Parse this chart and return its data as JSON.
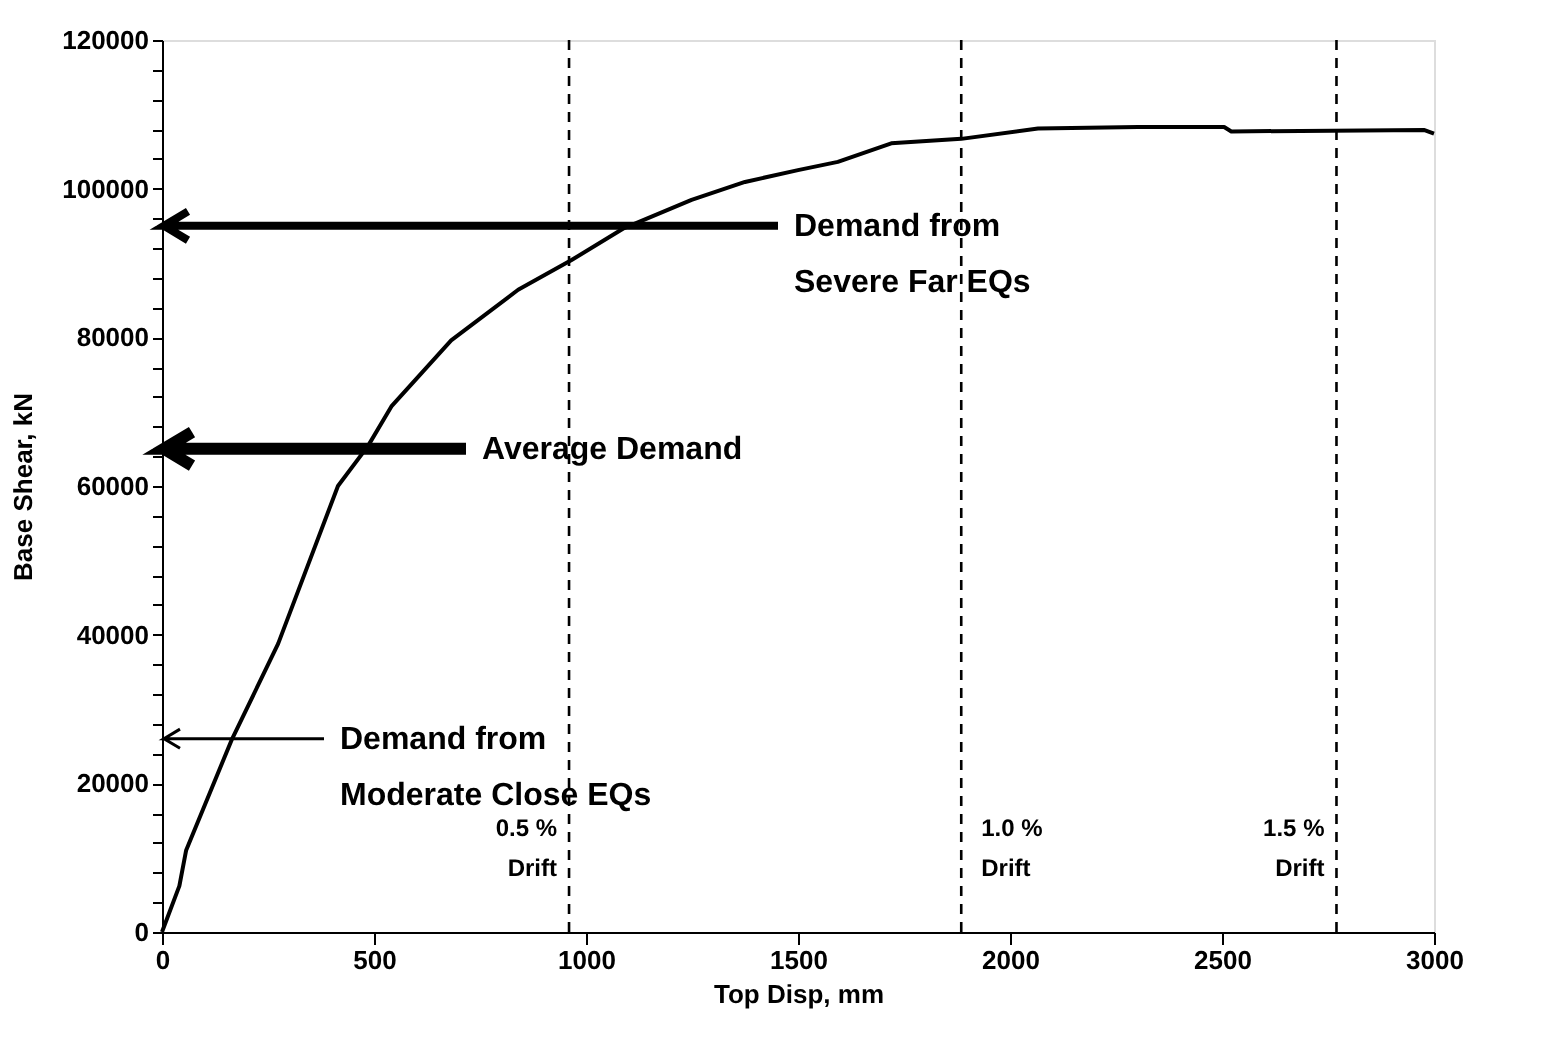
{
  "chart_data": {
    "type": "line",
    "xlabel": "Top Disp, mm",
    "ylabel": "Base Shear, kN",
    "series": [
      {
        "color": "#000000",
        "x": [
          0,
          41,
          57,
          164,
          274,
          415,
          486,
          541,
          682,
          840,
          966,
          1090,
          1249,
          1375,
          1500,
          1594,
          1720,
          1885,
          2066,
          2302,
          2505,
          2522,
          2976,
          3000
        ],
        "values": [
          0,
          6200,
          11000,
          25800,
          38800,
          60000,
          65400,
          70700,
          79600,
          86400,
          90400,
          94700,
          98500,
          100900,
          102500,
          103600,
          106100,
          106700,
          108100,
          108300,
          108300,
          107700,
          107900,
          107400
        ]
      }
    ],
    "xlim": [
      0,
      3000
    ],
    "xticks": [
      0,
      500,
      1000,
      1500,
      2000,
      2500,
      3000
    ],
    "ylim": [
      0,
      120000
    ],
    "yticks": [
      0,
      {
        "value": 4000,
        "label": null
      },
      {
        "value": 8000,
        "label": null
      },
      {
        "value": 12000,
        "label": null
      },
      {
        "value": 16000,
        "label": null
      },
      20000,
      {
        "value": 24000,
        "label": null
      },
      {
        "value": 28000,
        "label": null
      },
      {
        "value": 32000,
        "label": null
      },
      {
        "value": 36000,
        "label": null
      },
      40000,
      {
        "value": 44000,
        "label": null
      },
      {
        "value": 48000,
        "label": null
      },
      {
        "value": 52000,
        "label": null
      },
      {
        "value": 56000,
        "label": null
      },
      60000,
      {
        "value": 64000,
        "label": null
      },
      {
        "value": 68000,
        "label": null
      },
      {
        "value": 72000,
        "label": null
      },
      {
        "value": 76000,
        "label": null
      },
      80000,
      {
        "value": 84000,
        "label": null
      },
      {
        "value": 88000,
        "label": null
      },
      {
        "value": 92000,
        "label": null
      },
      {
        "value": 96000,
        "label": null
      },
      100000,
      {
        "value": 104000,
        "label": null
      },
      {
        "value": 108000,
        "label": null
      },
      {
        "value": 112000,
        "label": null
      },
      {
        "value": 116000,
        "label": null
      },
      120000
    ],
    "grid": false,
    "marker": "none",
    "line_style": "solid",
    "ref_lines": [
      {
        "axis": "x",
        "value": 960,
        "label": "0.5 %\nDrift",
        "line_style": "dashed",
        "color": "#000000"
      },
      {
        "axis": "x",
        "value": 1885,
        "label": "1.0 %\nDrift",
        "line_style": "dashed",
        "color": "#000000"
      },
      {
        "axis": "x",
        "value": 2770,
        "label": "1.5 %\nDrift",
        "line_style": "dashed",
        "color": "#000000"
      },
      {
        "axis": "y",
        "value": 95000,
        "label": "Demand from\nSevere Far EQs",
        "line_style": "solid",
        "color": "#000000"
      },
      {
        "axis": "y",
        "value": 65000,
        "label": "Average Demand",
        "line_style": "solid",
        "color": "#000000"
      },
      {
        "axis": "y",
        "value": 26000,
        "label": "Demand from\nModerate Close EQs",
        "line_style": "solid",
        "color": "#000000"
      }
    ]
  }
}
